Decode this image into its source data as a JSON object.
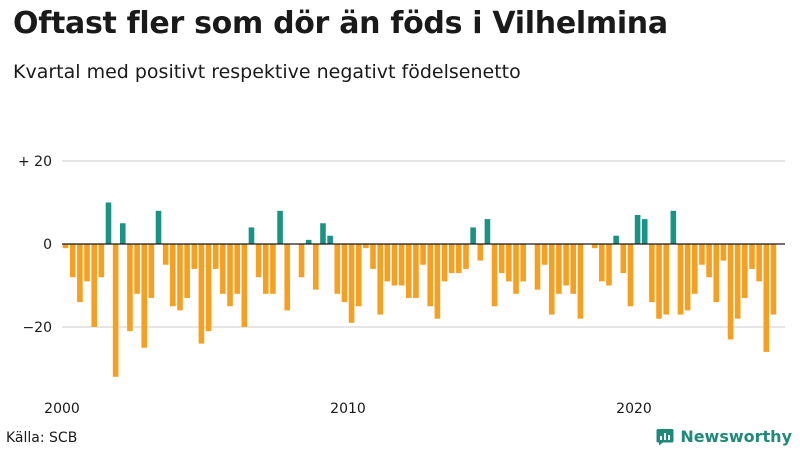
{
  "header": {
    "title": "Oftast fler som dör än föds i Vilhelmina",
    "subtitle": "Kvartal med positivt respektive negativt födelsenetto"
  },
  "footer": {
    "source": "Källa: SCB",
    "brand": "Newsworthy"
  },
  "colors": {
    "positive": "#1a9385",
    "negative": "#f5a020",
    "grid": "#cccccc",
    "zero_line": "#1a1a1a",
    "brand": "#1f8a7a"
  },
  "chart_data": {
    "type": "bar",
    "x_start": "2000 Q1",
    "x_tick_labels": [
      "2000",
      "2010",
      "2020"
    ],
    "y_tick_labels": [
      "+ 20",
      "0",
      "−20"
    ],
    "y_ticks": [
      20,
      0,
      -20
    ],
    "ylim": [
      -33,
      20
    ],
    "grid": true,
    "values": [
      -1,
      -8,
      -14,
      -9,
      -20,
      -8,
      10,
      -32,
      5,
      -21,
      -12,
      -25,
      -13,
      8,
      -5,
      -15,
      -16,
      -13,
      -6,
      -24,
      -21,
      -6,
      -12,
      -15,
      -12,
      -20,
      4,
      -8,
      -12,
      -12,
      8,
      -16,
      0,
      -8,
      1,
      -11,
      5,
      2,
      -12,
      -14,
      -19,
      -15,
      -1,
      -6,
      -17,
      -9,
      -10,
      -10,
      -13,
      -13,
      -5,
      -15,
      -18,
      -9,
      -7,
      -7,
      -6,
      4,
      -4,
      6,
      -15,
      -7,
      -9,
      -12,
      -9,
      0,
      -11,
      -5,
      -17,
      -12,
      -10,
      -12,
      -18,
      0,
      -1,
      -9,
      -10,
      2,
      -7,
      -15,
      7,
      6,
      -14,
      -18,
      -17,
      8,
      -17,
      -16,
      -12,
      -5,
      -8,
      -14,
      -4,
      -23,
      -18,
      -13,
      -6,
      -9,
      -26,
      -17
    ]
  }
}
